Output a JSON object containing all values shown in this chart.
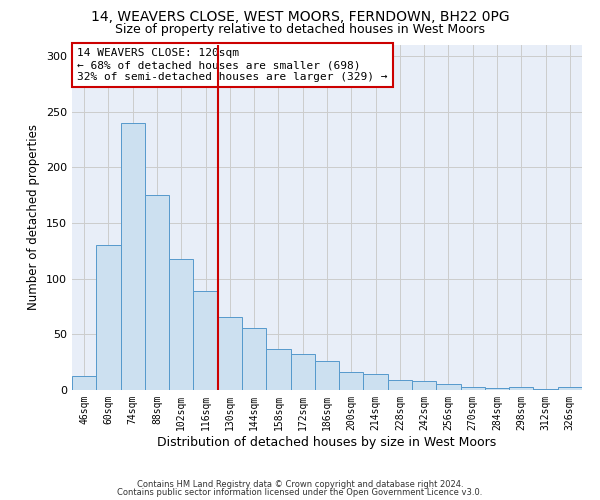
{
  "title1": "14, WEAVERS CLOSE, WEST MOORS, FERNDOWN, BH22 0PG",
  "title2": "Size of property relative to detached houses in West Moors",
  "xlabel": "Distribution of detached houses by size in West Moors",
  "ylabel": "Number of detached properties",
  "footnote1": "Contains HM Land Registry data © Crown copyright and database right 2024.",
  "footnote2": "Contains public sector information licensed under the Open Government Licence v3.0.",
  "categories": [
    "46sqm",
    "60sqm",
    "74sqm",
    "88sqm",
    "102sqm",
    "116sqm",
    "130sqm",
    "144sqm",
    "158sqm",
    "172sqm",
    "186sqm",
    "200sqm",
    "214sqm",
    "228sqm",
    "242sqm",
    "256sqm",
    "270sqm",
    "284sqm",
    "298sqm",
    "312sqm",
    "326sqm"
  ],
  "values": [
    13,
    130,
    240,
    175,
    118,
    89,
    66,
    56,
    37,
    32,
    26,
    16,
    14,
    9,
    8,
    5,
    3,
    2,
    3,
    1,
    3
  ],
  "bar_color": "#cce0f0",
  "bar_edge_color": "#5599cc",
  "grid_color": "#cccccc",
  "vline_x": 5.5,
  "vline_color": "#cc0000",
  "annotation_title": "14 WEAVERS CLOSE: 120sqm",
  "annotation_line1": "← 68% of detached houses are smaller (698)",
  "annotation_line2": "32% of semi-detached houses are larger (329) →",
  "box_color": "#cc0000",
  "ylim": [
    0,
    310
  ],
  "yticks": [
    0,
    50,
    100,
    150,
    200,
    250,
    300
  ],
  "bg_color": "#e8eef8",
  "title_fontsize": 10,
  "subtitle_fontsize": 9,
  "ann_fontsize": 8,
  "xlabel_fontsize": 9,
  "ylabel_fontsize": 8.5,
  "tick_fontsize": 7,
  "footnote_fontsize": 6
}
